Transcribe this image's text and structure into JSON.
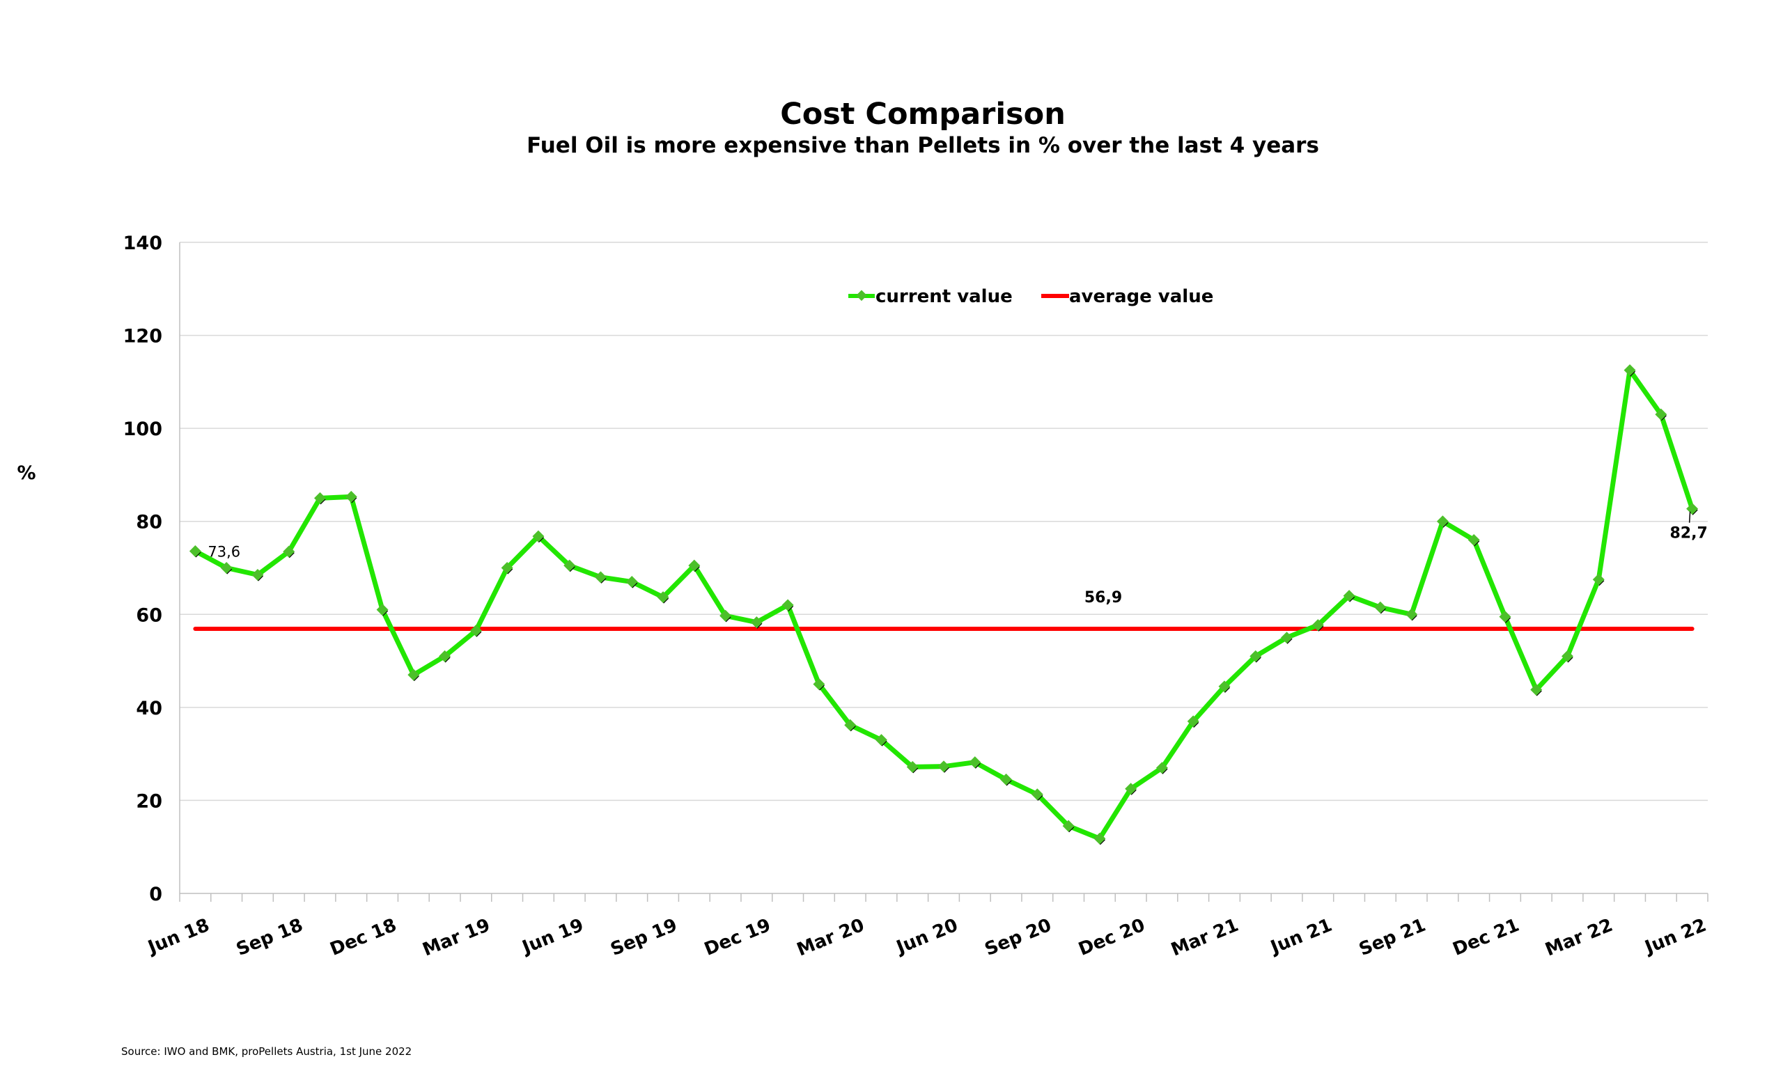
{
  "chart_data": {
    "type": "line",
    "title": "Cost Comparison",
    "subtitle": "Fuel Oil is more expensive than Pellets in % over the last 4 years",
    "ylabel": "%",
    "xlabel": "",
    "ylim": [
      0,
      140
    ],
    "yticks": [
      "0",
      "20",
      "40",
      "60",
      "80",
      "100",
      "120",
      "140"
    ],
    "grid": true,
    "legend_position": "top-center",
    "categories": [
      "Jun 18",
      "Jul 18",
      "Aug 18",
      "Sep 18",
      "Oct 18",
      "Nov 18",
      "Dec 18",
      "Jan 19",
      "Feb 19",
      "Mar 19",
      "Apr 19",
      "May 19",
      "Jun 19",
      "Jul 19",
      "Aug 19",
      "Sep 19",
      "Oct 19",
      "Nov 19",
      "Dec 19",
      "Jan 20",
      "Feb 20",
      "Mar 20",
      "Apr 20",
      "May 20",
      "Jun 20",
      "Jul 20",
      "Aug 20",
      "Sep 20",
      "Oct 20",
      "Nov 20",
      "Dec 20",
      "Jan 21",
      "Feb 21",
      "Mar 21",
      "Apr 21",
      "May 21",
      "Jun 21",
      "Jul 21",
      "Aug 21",
      "Sep 21",
      "Oct 21",
      "Nov 21",
      "Dec 21",
      "Jan 22",
      "Feb 22",
      "Mar 22",
      "Apr 22",
      "May 22",
      "Jun 22"
    ],
    "xtick_labels": [
      "Jun 18",
      "Sep 18",
      "Dec 18",
      "Mar 19",
      "Jun 19",
      "Sep 19",
      "Dec 19",
      "Mar 20",
      "Jun 20",
      "Sep 20",
      "Dec 20",
      "Mar 21",
      "Jun 21",
      "Sep 21",
      "Dec 21",
      "Mar 22",
      "Jun 22"
    ],
    "series": [
      {
        "name": "current value",
        "color": "#22e600",
        "values": [
          73.6,
          70,
          68.5,
          73.5,
          85,
          85.3,
          61,
          47,
          51,
          56.5,
          70,
          76.8,
          70.5,
          68,
          67,
          63.7,
          70.5,
          59.7,
          58.3,
          62,
          45,
          36.2,
          33,
          27.2,
          27.3,
          28.2,
          24.5,
          21.3,
          14.5,
          11.8,
          22.5,
          27,
          37,
          44.5,
          51,
          55,
          57.7,
          64,
          61.5,
          60,
          80,
          76,
          59.5,
          43.8,
          51,
          67.5,
          112.5,
          103,
          82.7
        ]
      },
      {
        "name": "average value",
        "color": "#ff0000",
        "value": 56.9
      }
    ],
    "data_labels": {
      "first": "73,6",
      "last": "82,7",
      "average": "56,9"
    },
    "source": "Source: IWO and BMK, proPellets Austria, 1st June 2022"
  }
}
